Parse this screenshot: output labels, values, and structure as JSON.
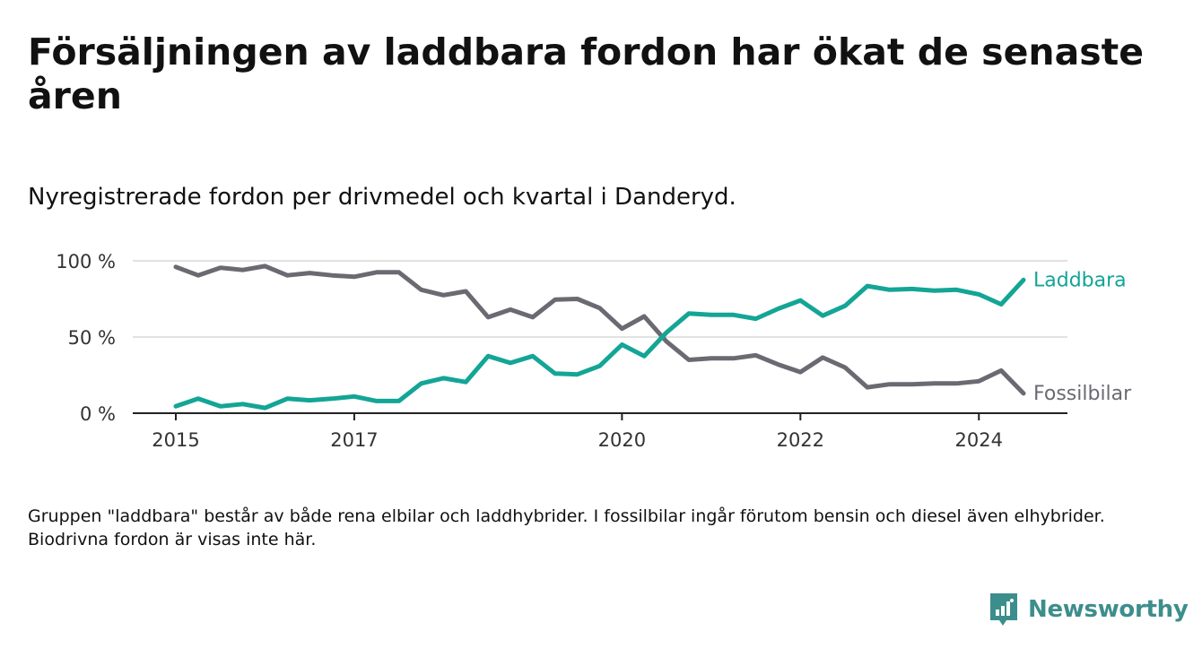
{
  "title": "Försäljningen av laddbara fordon har ökat de senaste åren",
  "subtitle": "Nyregistrerade fordon per drivmedel och kvartal i Danderyd.",
  "footnote": "Gruppen \"laddbara\" består av både rena elbilar och laddhybrider. I fossilbilar ingår förutom bensin och diesel även elhybrider. Biodrivna fordon är visas inte här.",
  "logo": {
    "text": "Newsworthy",
    "icon": "newsworthy-bar-chart-icon",
    "color": "#3c8e8c"
  },
  "chart_data": {
    "type": "line",
    "title": "Försäljningen av laddbara fordon har ökat de senaste åren",
    "subtitle": "Nyregistrerade fordon per drivmedel och kvartal i Danderyd.",
    "xlabel": "",
    "ylabel": "",
    "ylim": [
      0,
      100
    ],
    "y_ticks": [
      {
        "value": 0,
        "label": "0 %"
      },
      {
        "value": 50,
        "label": "50 %"
      },
      {
        "value": 100,
        "label": "100 %"
      }
    ],
    "x_ticks": [
      {
        "index": 0,
        "label": "2015"
      },
      {
        "index": 8,
        "label": "2017"
      },
      {
        "index": 20,
        "label": "2020"
      },
      {
        "index": 28,
        "label": "2022"
      },
      {
        "index": 36,
        "label": "2024"
      }
    ],
    "x_count": 39,
    "grid": true,
    "series": [
      {
        "name": "Laddbara",
        "color": "#13a596",
        "values": [
          4.5,
          9.5,
          4.5,
          6,
          3.5,
          9.5,
          8.5,
          9.5,
          11,
          8,
          8,
          19.5,
          23,
          20.5,
          37.5,
          33,
          37.5,
          26,
          25.5,
          31,
          45,
          37.5,
          53,
          65.5,
          64.5,
          64.5,
          62,
          68.5,
          74,
          64,
          70.5,
          83.5,
          81,
          81.5,
          80.5,
          81,
          78,
          71.5,
          87.5
        ]
      },
      {
        "name": "Fossilbilar",
        "color": "#6b6a72",
        "values": [
          96,
          90.5,
          95.5,
          94,
          96.5,
          90.5,
          92,
          90.5,
          89.5,
          92.5,
          92.5,
          81,
          77.5,
          80,
          63,
          68,
          63,
          74.5,
          75,
          69,
          55.5,
          63.5,
          47,
          35,
          36,
          36,
          38,
          32,
          27,
          36.5,
          30,
          17,
          19,
          19,
          19.5,
          19.5,
          21,
          28,
          13
        ]
      }
    ]
  }
}
